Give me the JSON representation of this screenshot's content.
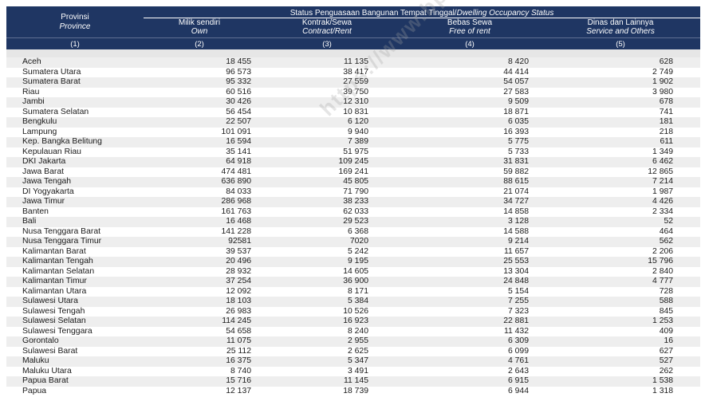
{
  "header": {
    "province_label": "Provinsi",
    "province_label_en": "Province",
    "status_title": "Status Penguasaan Bangunan Tempat Tinggal/",
    "status_title_en": "Dwelling Occupancy Status",
    "columns": [
      {
        "label": "Milik sendiri",
        "label_en": "Own"
      },
      {
        "label": "Kontrak/Sewa",
        "label_en": "Contract/Rent"
      },
      {
        "label": "Bebas Sewa",
        "label_en": "Free of rent"
      },
      {
        "label": "Dinas dan Lainnya",
        "label_en": "Service and Others"
      }
    ],
    "column_numbers": [
      "(1)",
      "(2)",
      "(3)",
      "(4)",
      "(5)"
    ]
  },
  "watermark": "https://www.bps.go.id",
  "rows": [
    {
      "province": "Aceh",
      "own": "18 455",
      "rent": "11 135",
      "free": "8 420",
      "others": "628"
    },
    {
      "province": "Sumatera Utara",
      "own": "96 573",
      "rent": "38 417",
      "free": "44 414",
      "others": "2 749"
    },
    {
      "province": "Sumatera Barat",
      "own": "95 332",
      "rent": "27 559",
      "free": "54 057",
      "others": "1 902"
    },
    {
      "province": "Riau",
      "own": "60 516",
      "rent": "39 750",
      "free": "27 583",
      "others": "3 980"
    },
    {
      "province": "Jambi",
      "own": "30 426",
      "rent": "12 310",
      "free": "9 509",
      "others": "678"
    },
    {
      "province": "Sumatera Selatan",
      "own": "56 454",
      "rent": "10 831",
      "free": "18 871",
      "others": "741"
    },
    {
      "province": "Bengkulu",
      "own": "22 507",
      "rent": "6 120",
      "free": "6 035",
      "others": "181"
    },
    {
      "province": "Lampung",
      "own": "101 091",
      "rent": "9 940",
      "free": "16 393",
      "others": "218"
    },
    {
      "province": "Kep. Bangka Belitung",
      "own": "16 594",
      "rent": "7 389",
      "free": "5 775",
      "others": "611"
    },
    {
      "province": "Kepulauan Riau",
      "own": "35 141",
      "rent": "51 975",
      "free": "5 733",
      "others": "1 349"
    },
    {
      "province": "DKI Jakarta",
      "own": "64 918",
      "rent": "109 245",
      "free": "31 831",
      "others": "6 462"
    },
    {
      "province": "Jawa Barat",
      "own": "474 481",
      "rent": "169 241",
      "free": "59 882",
      "others": "12 865"
    },
    {
      "province": "Jawa Tengah",
      "own": "636 890",
      "rent": "45 805",
      "free": "88 615",
      "others": "7 214"
    },
    {
      "province": "DI Yogyakarta",
      "own": "84 033",
      "rent": "71 790",
      "free": "21 074",
      "others": "1 987"
    },
    {
      "province": "Jawa Timur",
      "own": "286 968",
      "rent": "38 233",
      "free": "34 727",
      "others": "4 426"
    },
    {
      "province": "Banten",
      "own": "161 763",
      "rent": "62 033",
      "free": "14 858",
      "others": "2 334"
    },
    {
      "province": "Bali",
      "own": "16 468",
      "rent": "29 523",
      "free": "3 128",
      "others": "52"
    },
    {
      "province": "Nusa Tenggara Barat",
      "own": "141 228",
      "rent": "6 368",
      "free": "14 588",
      "others": "464"
    },
    {
      "province": "Nusa Tenggara Timur",
      "own": "92581",
      "rent": "7020",
      "free": "9 214",
      "others": "562"
    },
    {
      "province": "Kalimantan Barat",
      "own": "39 537",
      "rent": "5 242",
      "free": "11 657",
      "others": "2 206"
    },
    {
      "province": "Kalimantan Tengah",
      "own": "20 496",
      "rent": "9 195",
      "free": "25 553",
      "others": "15 796"
    },
    {
      "province": "Kalimantan Selatan",
      "own": "28 932",
      "rent": "14 605",
      "free": "13 304",
      "others": "2 840"
    },
    {
      "province": "Kalimantan Timur",
      "own": "37 254",
      "rent": "36 900",
      "free": "24 848",
      "others": "4 777"
    },
    {
      "province": "Kalimantan Utara",
      "own": "12 092",
      "rent": "8 171",
      "free": "5 154",
      "others": "728"
    },
    {
      "province": "Sulawesi Utara",
      "own": "18 103",
      "rent": "5 384",
      "free": "7 255",
      "others": "588"
    },
    {
      "province": "Sulawesi Tengah",
      "own": "26 983",
      "rent": "10 526",
      "free": "7 323",
      "others": "845"
    },
    {
      "province": "Sulawesi Selatan",
      "own": "114 245",
      "rent": "16 923",
      "free": "22 881",
      "others": "1 253"
    },
    {
      "province": "Sulawesi Tenggara",
      "own": "54 658",
      "rent": "8 240",
      "free": "11 432",
      "others": "409"
    },
    {
      "province": "Gorontalo",
      "own": "11 075",
      "rent": "2 955",
      "free": "6 309",
      "others": "16"
    },
    {
      "province": "Sulawesi Barat",
      "own": "25 112",
      "rent": "2 625",
      "free": "6 099",
      "others": "627"
    },
    {
      "province": "Maluku",
      "own": "16 375",
      "rent": "5 347",
      "free": "4 761",
      "others": "527"
    },
    {
      "province": "Maluku Utara",
      "own": "8 740",
      "rent": "3 491",
      "free": "2 643",
      "others": "262"
    },
    {
      "province": "Papua Barat",
      "own": "15 716",
      "rent": "11 145",
      "free": "6 915",
      "others": "1 538"
    },
    {
      "province": "Papua",
      "own": "12 137",
      "rent": "18 739",
      "free": "6 944",
      "others": "1 318"
    }
  ]
}
